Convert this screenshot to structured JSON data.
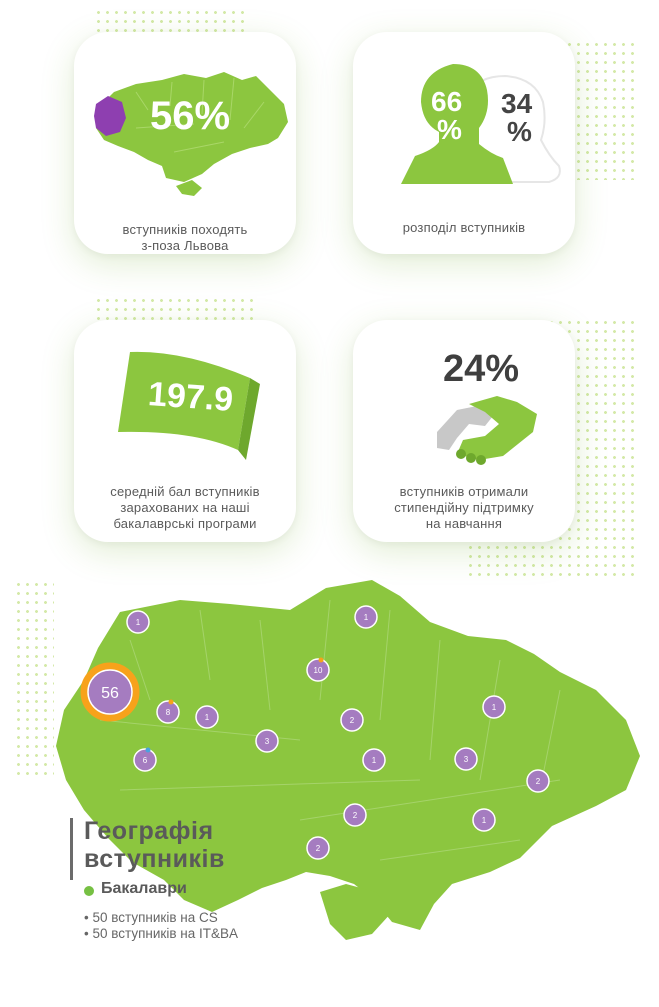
{
  "cards": [
    {
      "stat": "56%",
      "caption": [
        "вступників походять",
        "з-поза Львова"
      ]
    },
    {
      "stat_a": "66",
      "stat_a_pct": "%",
      "stat_b": "34",
      "stat_b_pct": "%",
      "caption": [
        "розподіл вступників"
      ]
    },
    {
      "stat": "197.9",
      "caption": [
        "середній бал вступників",
        "зарахованих на наші",
        "бакалаврські програми"
      ]
    },
    {
      "stat": "24%",
      "caption": [
        "вступників отримали",
        "стипендійну підтримку",
        "на навчання"
      ]
    }
  ],
  "map": {
    "title_line1": "Географія",
    "title_line2": "вступників",
    "legend_label": "Бакалаври",
    "items": [
      "50 вступників на CS",
      "50 вступників на IT&BA"
    ],
    "markers": [
      {
        "label": "1"
      },
      {
        "label": "1"
      },
      {
        "label": "56"
      },
      {
        "label": "10"
      },
      {
        "label": "8"
      },
      {
        "label": "1"
      },
      {
        "label": "2"
      },
      {
        "label": "3"
      },
      {
        "label": "6"
      },
      {
        "label": "1"
      },
      {
        "label": "1"
      },
      {
        "label": "3"
      },
      {
        "label": "2"
      },
      {
        "label": "2"
      },
      {
        "label": "1"
      },
      {
        "label": "2"
      }
    ],
    "colors": {
      "green": "#8cc63f",
      "purple": "#a57cc0",
      "orange": "#f7a21b",
      "blue": "#4aa3df"
    }
  }
}
